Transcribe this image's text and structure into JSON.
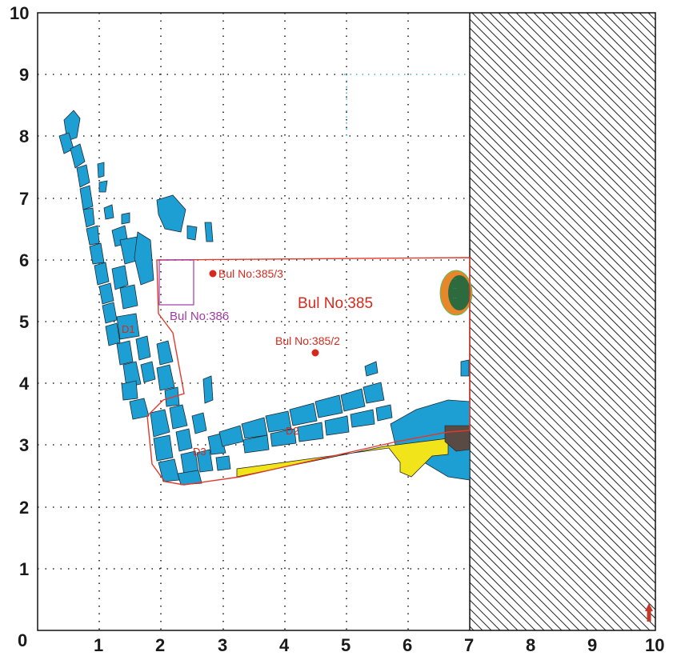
{
  "plan": {
    "x_ticks": [
      "1",
      "2",
      "3",
      "4",
      "5",
      "6",
      "7",
      "8",
      "9",
      "10"
    ],
    "y_ticks": [
      "1",
      "2",
      "3",
      "4",
      "5",
      "6",
      "7",
      "8",
      "9",
      "10"
    ],
    "origin_label": "0",
    "grid_range": [
      0,
      10
    ],
    "grid_line_style": "dotted",
    "excavation_limit_x": 7,
    "labels": {
      "main_trench": "Bul No:385",
      "find_385_3": "Bul No:385/3",
      "find_385_2": "Bul No:385/2",
      "square_386": "Bul No:386",
      "wall_d1": "D1",
      "wall_d2": "D2",
      "wall_d3": "D3"
    },
    "finds": [
      {
        "id": "385/3",
        "x": 2.85,
        "y": 5.78
      },
      {
        "id": "385/2",
        "x": 4.5,
        "y": 4.5
      }
    ],
    "colors": {
      "stone": "#1e9fd4",
      "trench_outline": "#e03a2c",
      "square_outline": "#a13aa8",
      "yellow_fill": "#f2e41a",
      "green_feature": "#2d6b3f",
      "orange_feature": "#e8872a",
      "north_arrow": "#c0392b",
      "hatch": "#2a2a2a"
    },
    "icons": {
      "north_arrow": "north-arrow-icon",
      "find_marker": "find-dot-icon"
    }
  }
}
